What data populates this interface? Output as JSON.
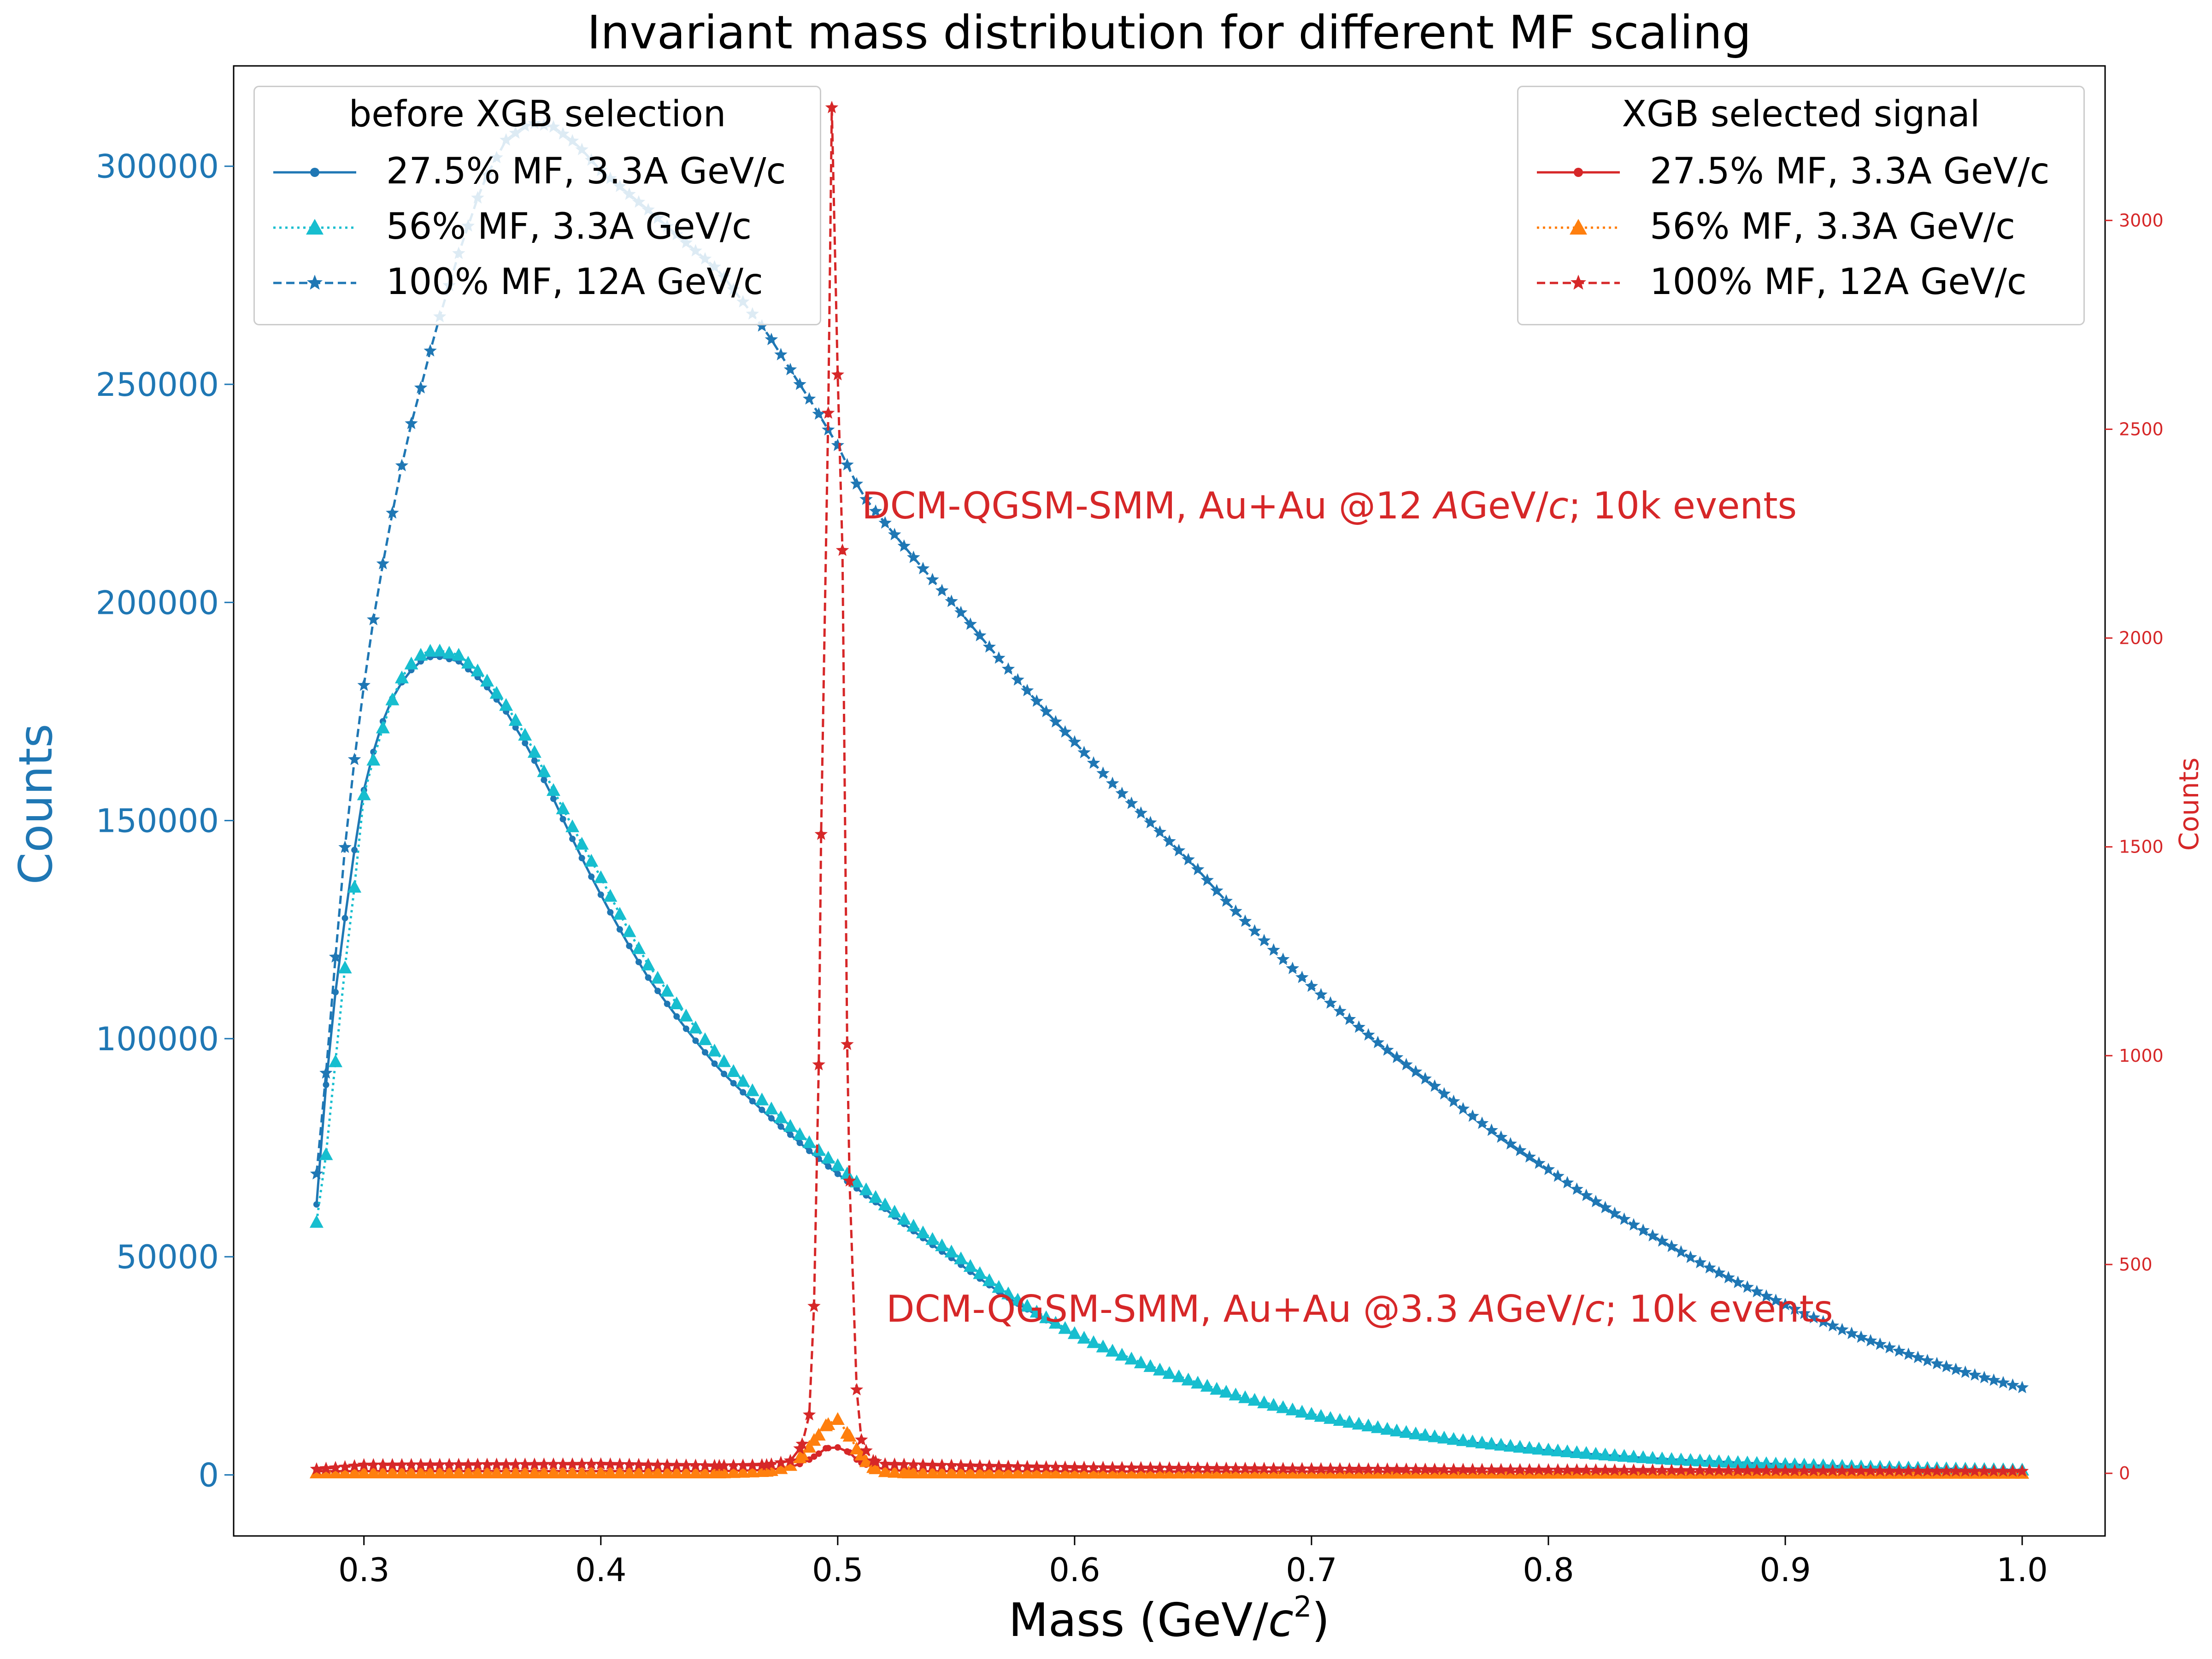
{
  "colors": {
    "left_axis": "#1f77b4",
    "right_axis": "#d62728",
    "s_blue": "#1f77b4",
    "s_cyan": "#17becf",
    "s_blue_dashed": "#1f77b4",
    "s_red": "#d62728",
    "s_orange": "#ff7f0e",
    "s_red_dashed": "#d62728"
  },
  "chart_data": {
    "type": "line",
    "title": "Invariant mass distribution for different MF scaling",
    "xlabel_main": "Mass (GeV/",
    "xlabel_c": "c",
    "xlabel_sup": "2",
    "xlabel_close": ")",
    "ylabel_left": "Counts",
    "ylabel_right": "Counts",
    "xlim": [
      0.245,
      1.035
    ],
    "ylim_left": [
      -14000,
      323000
    ],
    "ylim_right": [
      -150,
      3370
    ],
    "x_ticks": [
      "0.3",
      "0.4",
      "0.5",
      "0.6",
      "0.7",
      "0.8",
      "0.9",
      "1.0"
    ],
    "y_left_ticks": [
      "0",
      "50000",
      "100000",
      "150000",
      "200000",
      "250000",
      "300000"
    ],
    "y_right_ticks": [
      "0",
      "500",
      "1000",
      "1500",
      "2000",
      "2500",
      "3000"
    ],
    "x_range": [
      0.28,
      1.0,
      0.004
    ],
    "grid": false,
    "series_left": [
      {
        "name": "27.5% MF, 3.3A GeV/c",
        "style": "solid",
        "marker": "dot",
        "color": "#1f77b4",
        "anchors": [
          [
            0.28,
            62000
          ],
          [
            0.285,
            98000
          ],
          [
            0.29,
            120000
          ],
          [
            0.295,
            140000
          ],
          [
            0.3,
            157000
          ],
          [
            0.305,
            168000
          ],
          [
            0.31,
            176000
          ],
          [
            0.315,
            181000
          ],
          [
            0.32,
            184500
          ],
          [
            0.325,
            187000
          ],
          [
            0.33,
            187800
          ],
          [
            0.34,
            186500
          ],
          [
            0.35,
            182000
          ],
          [
            0.36,
            175000
          ],
          [
            0.37,
            166000
          ],
          [
            0.38,
            155000
          ],
          [
            0.4,
            133000
          ],
          [
            0.42,
            114000
          ],
          [
            0.45,
            93000
          ],
          [
            0.48,
            78000
          ],
          [
            0.5,
            69000
          ],
          [
            0.52,
            61000
          ],
          [
            0.55,
            49000
          ],
          [
            0.6,
            32000
          ],
          [
            0.65,
            21000
          ],
          [
            0.7,
            13500
          ],
          [
            0.75,
            8700
          ],
          [
            0.8,
            5600
          ],
          [
            0.85,
            3600
          ],
          [
            0.9,
            2400
          ],
          [
            0.95,
            1600
          ],
          [
            1.0,
            1100
          ]
        ]
      },
      {
        "name": "56% MF, 3.3A GeV/c",
        "style": "dotted",
        "marker": "triangle",
        "color": "#17becf",
        "anchors": [
          [
            0.28,
            58000
          ],
          [
            0.285,
            78000
          ],
          [
            0.29,
            108000
          ],
          [
            0.295,
            130000
          ],
          [
            0.3,
            156000
          ],
          [
            0.305,
            166000
          ],
          [
            0.31,
            175000
          ],
          [
            0.315,
            182000
          ],
          [
            0.32,
            186000
          ],
          [
            0.325,
            188500
          ],
          [
            0.33,
            189200
          ],
          [
            0.34,
            188000
          ],
          [
            0.35,
            183500
          ],
          [
            0.36,
            176500
          ],
          [
            0.37,
            168000
          ],
          [
            0.38,
            157000
          ],
          [
            0.4,
            137000
          ],
          [
            0.42,
            117000
          ],
          [
            0.45,
            96000
          ],
          [
            0.48,
            80000
          ],
          [
            0.5,
            71000
          ],
          [
            0.52,
            62000
          ],
          [
            0.55,
            50500
          ],
          [
            0.6,
            32500
          ],
          [
            0.65,
            21500
          ],
          [
            0.7,
            14000
          ],
          [
            0.75,
            9000
          ],
          [
            0.8,
            5800
          ],
          [
            0.85,
            3700
          ],
          [
            0.9,
            2500
          ],
          [
            0.95,
            1700
          ],
          [
            1.0,
            1200
          ]
        ]
      },
      {
        "name": "100% MF, 12A GeV/c",
        "style": "dashed",
        "marker": "star",
        "color": "#1f77b4",
        "anchors": [
          [
            0.28,
            69000
          ],
          [
            0.285,
            99000
          ],
          [
            0.29,
            134000
          ],
          [
            0.295,
            160000
          ],
          [
            0.3,
            181000
          ],
          [
            0.305,
            200000
          ],
          [
            0.31,
            215000
          ],
          [
            0.315,
            229000
          ],
          [
            0.32,
            241000
          ],
          [
            0.33,
            262000
          ],
          [
            0.34,
            280000
          ],
          [
            0.35,
            296000
          ],
          [
            0.36,
            306000
          ],
          [
            0.37,
            310000
          ],
          [
            0.38,
            309000
          ],
          [
            0.39,
            305000
          ],
          [
            0.4,
            299000
          ],
          [
            0.42,
            290000
          ],
          [
            0.45,
            276000
          ],
          [
            0.47,
            262000
          ],
          [
            0.49,
            245000
          ],
          [
            0.5,
            236000
          ],
          [
            0.51,
            225000
          ],
          [
            0.55,
            199000
          ],
          [
            0.6,
            168000
          ],
          [
            0.65,
            140000
          ],
          [
            0.7,
            112000
          ],
          [
            0.75,
            90000
          ],
          [
            0.8,
            70000
          ],
          [
            0.85,
            53000
          ],
          [
            0.9,
            39000
          ],
          [
            0.95,
            28000
          ],
          [
            1.0,
            20000
          ]
        ]
      }
    ],
    "series_right": [
      {
        "name": "27.5% MF, 3.3A GeV/c",
        "style": "solid",
        "marker": "dot",
        "color": "#d62728",
        "anchors": [
          [
            0.28,
            5
          ],
          [
            0.45,
            5
          ],
          [
            0.47,
            8
          ],
          [
            0.48,
            15
          ],
          [
            0.49,
            40
          ],
          [
            0.495,
            60
          ],
          [
            0.5,
            62
          ],
          [
            0.505,
            50
          ],
          [
            0.51,
            25
          ],
          [
            0.52,
            10
          ],
          [
            0.53,
            5
          ],
          [
            1.0,
            3
          ]
        ]
      },
      {
        "name": "56% MF, 3.3A GeV/c",
        "style": "dotted",
        "marker": "triangle",
        "color": "#ff7f0e",
        "anchors": [
          [
            0.28,
            2
          ],
          [
            0.45,
            2
          ],
          [
            0.47,
            6
          ],
          [
            0.48,
            20
          ],
          [
            0.485,
            45
          ],
          [
            0.49,
            80
          ],
          [
            0.495,
            115
          ],
          [
            0.5,
            130
          ],
          [
            0.505,
            90
          ],
          [
            0.51,
            45
          ],
          [
            0.515,
            15
          ],
          [
            0.52,
            5
          ],
          [
            0.53,
            2
          ],
          [
            1.0,
            1
          ]
        ]
      },
      {
        "name": "100% MF, 12A GeV/c",
        "style": "dashed",
        "marker": "star",
        "color": "#d62728",
        "anchors": [
          [
            0.28,
            10
          ],
          [
            0.3,
            20
          ],
          [
            0.4,
            22
          ],
          [
            0.45,
            18
          ],
          [
            0.47,
            20
          ],
          [
            0.48,
            30
          ],
          [
            0.485,
            70
          ],
          [
            0.488,
            140
          ],
          [
            0.49,
            400
          ],
          [
            0.493,
            1530
          ],
          [
            0.4975,
            3270
          ],
          [
            0.502,
            2210
          ],
          [
            0.505,
            700
          ],
          [
            0.508,
            200
          ],
          [
            0.51,
            80
          ],
          [
            0.515,
            30
          ],
          [
            0.52,
            22
          ],
          [
            0.6,
            14
          ],
          [
            0.8,
            8
          ],
          [
            1.0,
            5
          ]
        ]
      }
    ],
    "annotations": [
      {
        "prefix": "DCM-QGSM-SMM, Au+Au @12 ",
        "italic": "A",
        "mid": "GeV/",
        "italic2": "c",
        "suffix": "; 10k events",
        "color": "#d62728"
      },
      {
        "prefix": "DCM-QGSM-SMM, Au+Au @3.3 ",
        "italic": "A",
        "mid": "GeV/",
        "italic2": "c",
        "suffix": "; 10k events",
        "color": "#d62728"
      }
    ]
  },
  "legend_left": {
    "title": "before XGB selection",
    "entries": [
      "27.5% MF, 3.3A GeV/c",
      "56% MF, 3.3A GeV/c",
      "100% MF, 12A GeV/c"
    ]
  },
  "legend_right": {
    "title": "XGB selected signal",
    "entries": [
      "27.5% MF, 3.3A GeV/c",
      "56% MF, 3.3A GeV/c",
      "100% MF, 12A GeV/c"
    ]
  }
}
